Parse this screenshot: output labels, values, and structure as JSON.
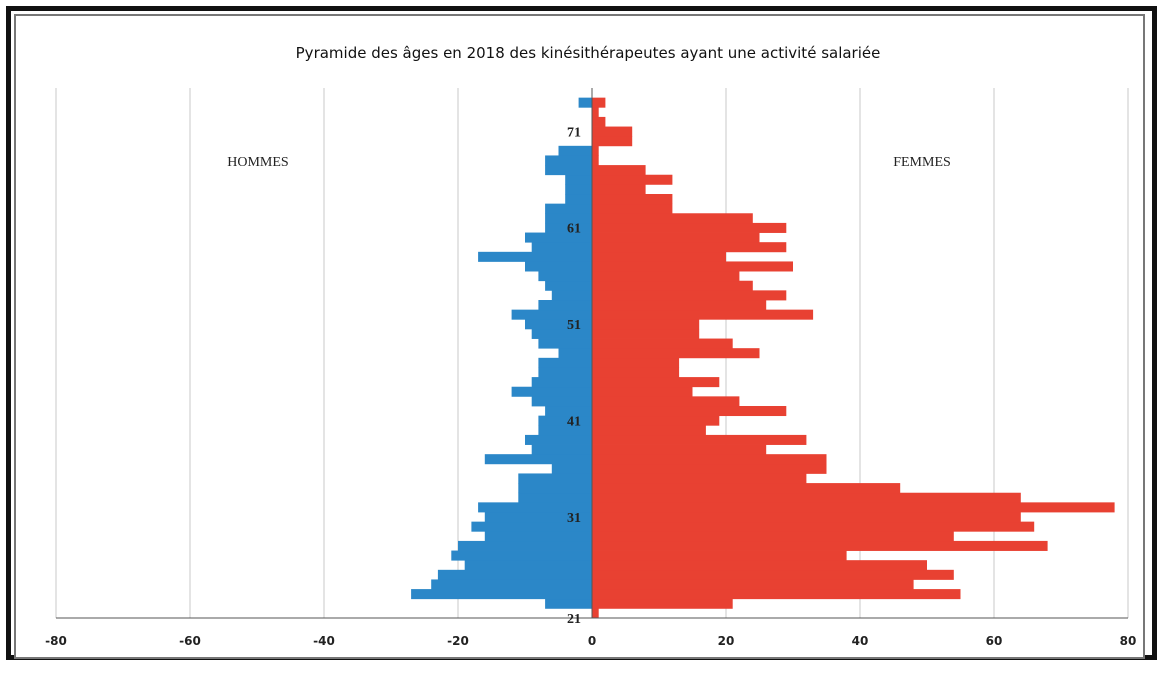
{
  "chart_data": {
    "type": "bar",
    "orientation": "horizontal-pyramid",
    "title": "Pyramide des âges en 2018 des kinésithérapeutes  ayant une activité salariée",
    "left_label": "HOMMES",
    "right_label": "FEMMES",
    "xlim": [
      -80,
      80
    ],
    "x_ticks": [
      -80,
      -60,
      -40,
      -20,
      0,
      20,
      40,
      60,
      80
    ],
    "age_range": [
      21,
      75
    ],
    "y_tick_labels": [
      21,
      31,
      41,
      51,
      61,
      71
    ],
    "grid": true,
    "series": [
      {
        "name": "HOMMES",
        "color": "#2b87c8",
        "ages": [
          21,
          22,
          23,
          24,
          25,
          26,
          27,
          28,
          29,
          30,
          31,
          32,
          33,
          34,
          35,
          36,
          37,
          38,
          39,
          40,
          41,
          42,
          43,
          44,
          45,
          46,
          47,
          48,
          49,
          50,
          51,
          52,
          53,
          54,
          55,
          56,
          57,
          58,
          59,
          60,
          61,
          62,
          63,
          64,
          65,
          66,
          67,
          68,
          69,
          70,
          71,
          72,
          73,
          74,
          75
        ],
        "values": [
          0,
          7,
          27,
          24,
          23,
          19,
          21,
          20,
          16,
          18,
          16,
          17,
          11,
          11,
          11,
          6,
          16,
          9,
          10,
          8,
          8,
          7,
          9,
          12,
          9,
          8,
          8,
          5,
          8,
          9,
          10,
          12,
          8,
          6,
          7,
          8,
          10,
          17,
          9,
          10,
          7,
          7,
          7,
          4,
          4,
          4,
          7,
          7,
          5,
          0,
          0,
          0,
          0,
          2,
          0
        ]
      },
      {
        "name": "FEMMES",
        "color": "#e84132",
        "ages": [
          21,
          22,
          23,
          24,
          25,
          26,
          27,
          28,
          29,
          30,
          31,
          32,
          33,
          34,
          35,
          36,
          37,
          38,
          39,
          40,
          41,
          42,
          43,
          44,
          45,
          46,
          47,
          48,
          49,
          50,
          51,
          52,
          53,
          54,
          55,
          56,
          57,
          58,
          59,
          60,
          61,
          62,
          63,
          64,
          65,
          66,
          67,
          68,
          69,
          70,
          71,
          72,
          73,
          74,
          75
        ],
        "values": [
          1,
          21,
          55,
          48,
          54,
          50,
          38,
          68,
          54,
          66,
          64,
          78,
          64,
          46,
          32,
          35,
          35,
          26,
          32,
          17,
          19,
          29,
          22,
          15,
          19,
          13,
          13,
          25,
          21,
          16,
          16,
          33,
          26,
          29,
          24,
          22,
          30,
          20,
          29,
          25,
          29,
          24,
          12,
          12,
          8,
          12,
          8,
          1,
          1,
          6,
          6,
          2,
          1,
          2,
          0
        ]
      }
    ]
  }
}
